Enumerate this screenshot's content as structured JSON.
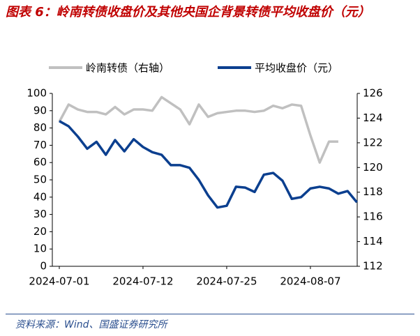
{
  "chart_data": {
    "type": "line",
    "title": "图表 6：岭南转债收盘价及其他央国企背景转债平均收盘价（元）",
    "source": "资料来源：Wind、国盛证券研究所",
    "categories": [
      "2024-07-01",
      null,
      null,
      null,
      null,
      null,
      null,
      null,
      null,
      "2024-07-12",
      null,
      null,
      null,
      null,
      null,
      null,
      null,
      null,
      "2024-07-25",
      null,
      null,
      null,
      null,
      null,
      null,
      null,
      null,
      "2024-08-07",
      null,
      null,
      null,
      null,
      null
    ],
    "series": [
      {
        "name": "岭南转债（右轴）",
        "color": "#c0c0c0",
        "axis": "y2",
        "values": [
          123.7,
          125.1,
          124.7,
          124.5,
          124.5,
          124.3,
          124.9,
          124.3,
          124.7,
          124.7,
          124.6,
          125.7,
          125.2,
          124.7,
          123.5,
          125.1,
          124.1,
          124.4,
          124.5,
          124.6,
          124.6,
          124.5,
          124.6,
          125.0,
          124.8,
          125.1,
          125.0,
          122.6,
          120.4,
          122.1,
          122.1,
          null,
          null
        ]
      },
      {
        "name": "平均收盘价（元）",
        "color": "#0b3f8f",
        "values": [
          84,
          81,
          75,
          68,
          72,
          64.5,
          73,
          66.5,
          73.5,
          69,
          66,
          64.5,
          58.5,
          58.5,
          57,
          50,
          41,
          34,
          35,
          46,
          45.5,
          43,
          53,
          54,
          49.5,
          39,
          40,
          45,
          46,
          45,
          42,
          43.5,
          37
        ]
      }
    ],
    "ylim": [
      0,
      100
    ],
    "yticks": [
      0,
      10,
      20,
      30,
      40,
      50,
      60,
      70,
      80,
      90,
      100
    ],
    "y2lim": [
      112,
      126
    ],
    "y2ticks": [
      112,
      114,
      116,
      118,
      120,
      122,
      124,
      126
    ],
    "grid": false,
    "legend": "top"
  }
}
